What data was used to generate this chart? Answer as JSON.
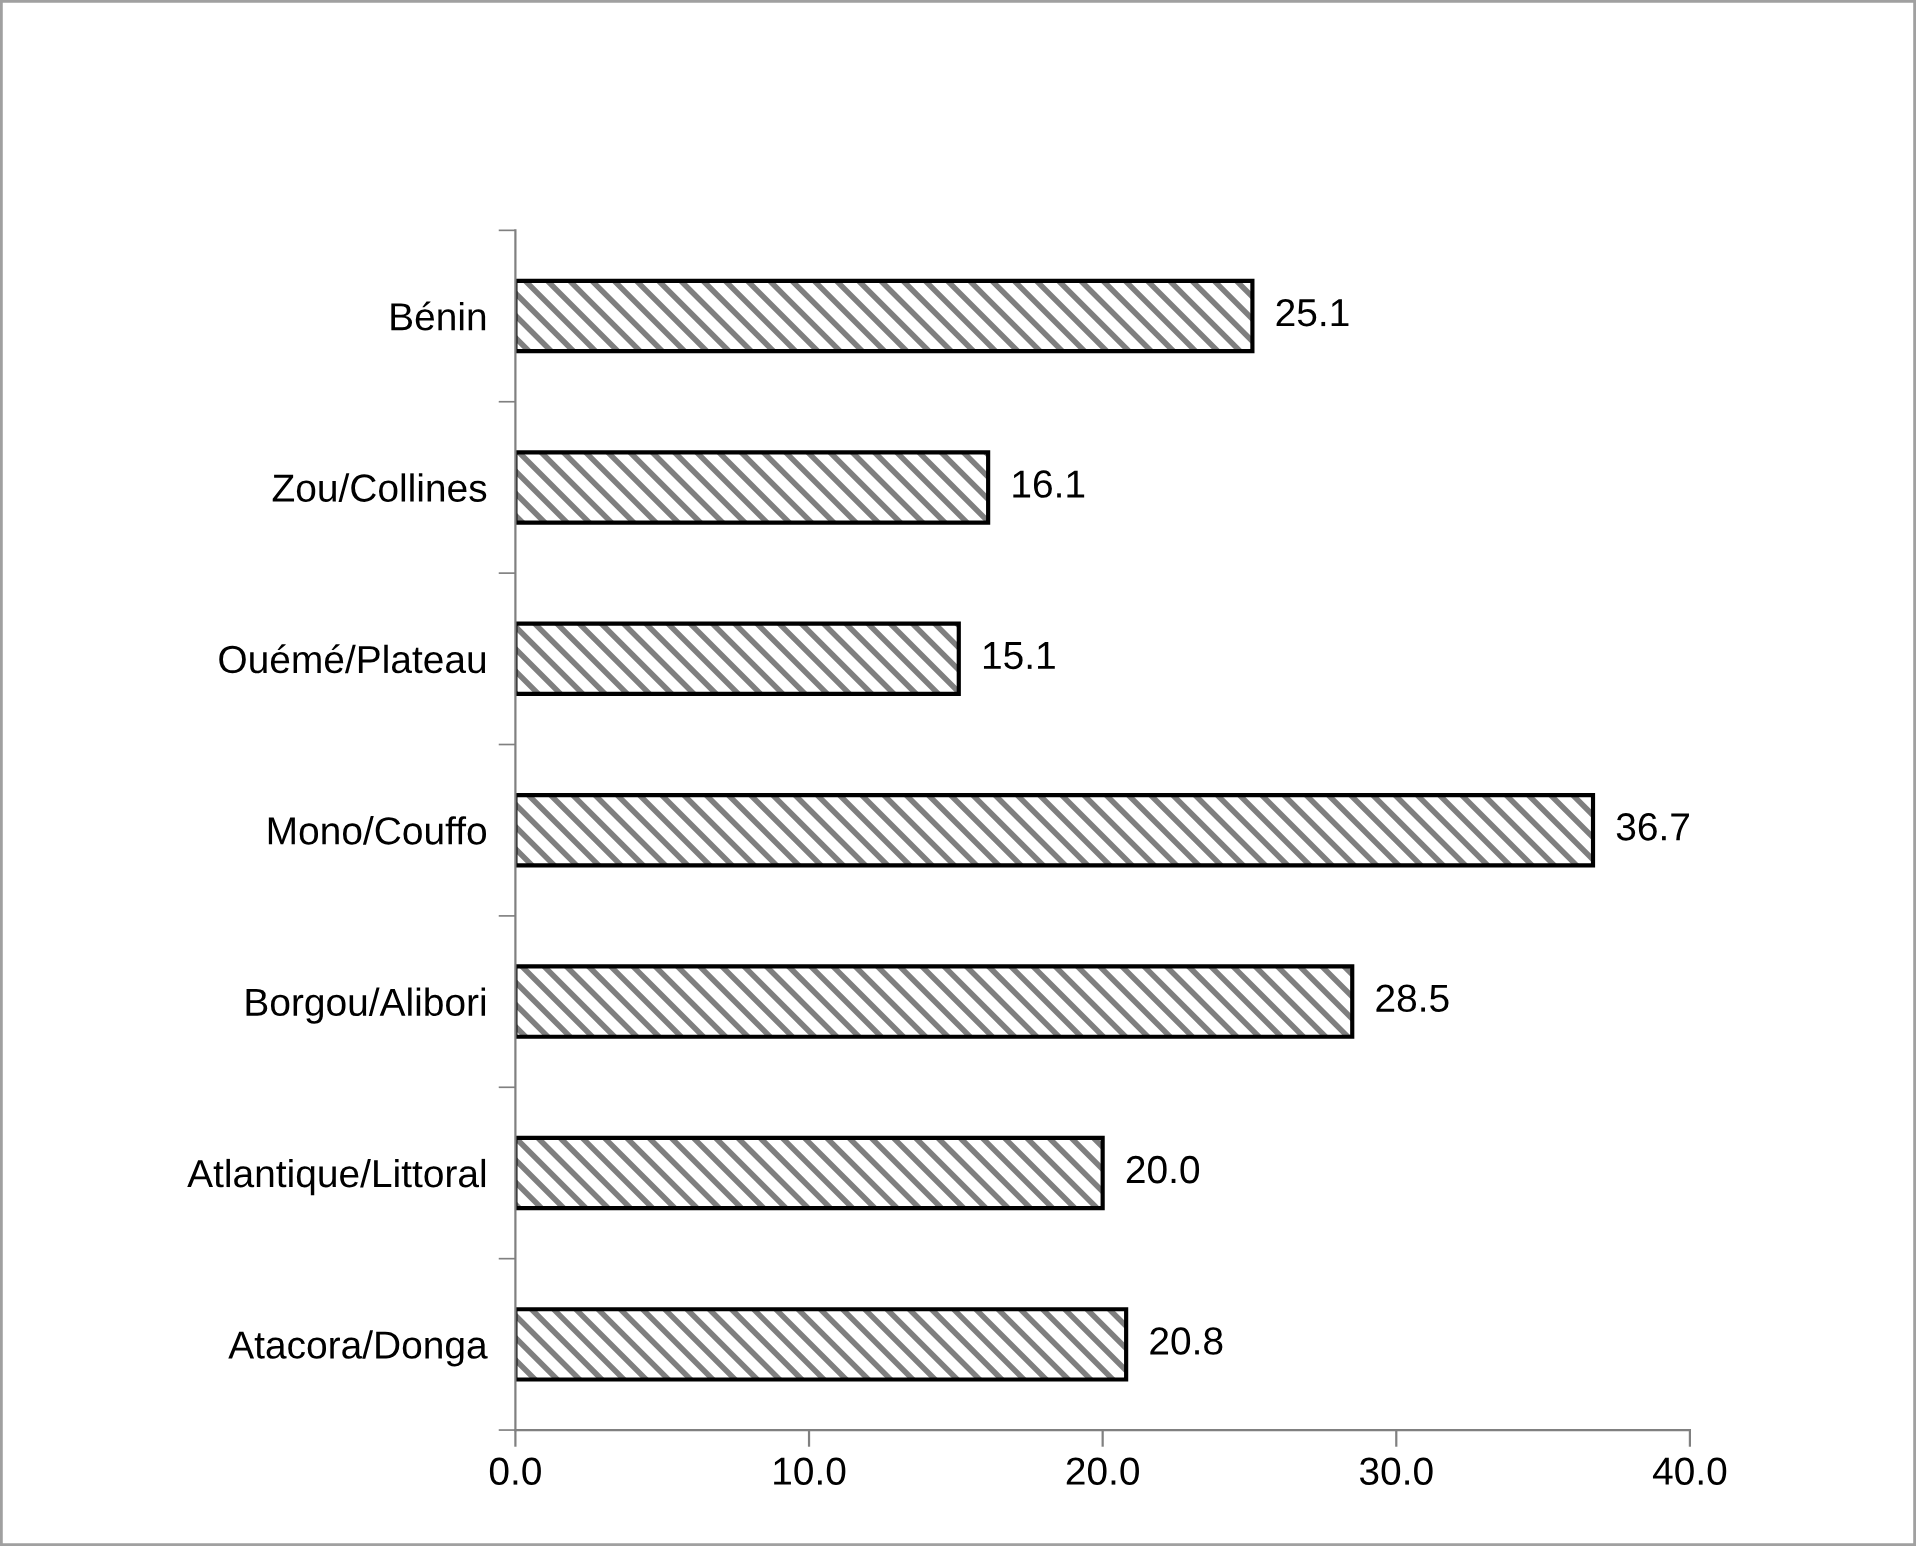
{
  "chart_data": {
    "type": "bar",
    "orientation": "horizontal",
    "categories": [
      "Bénin",
      "Zou/Collines",
      "Ouémé/Plateau",
      "Mono/Couffo",
      "Borgou/Alibori",
      "Atlantique/Littoral",
      "Atacora/Donga"
    ],
    "values": [
      25.1,
      16.1,
      15.1,
      36.7,
      28.5,
      20.0,
      20.8
    ],
    "color": "#000000",
    "value_labels": [
      "25.1",
      "16.1",
      "15.1",
      "36.7",
      "28.5",
      "20.0",
      "20.8"
    ],
    "xlim": [
      0,
      40
    ],
    "xticks": [
      {
        "value": 0,
        "label": "0.0"
      },
      {
        "value": 10,
        "label": "10.0"
      },
      {
        "value": 20,
        "label": "20.0"
      },
      {
        "value": 30,
        "label": "30.0"
      },
      {
        "value": 40,
        "label": "40.0"
      }
    ],
    "grid": false,
    "legend": false
  }
}
